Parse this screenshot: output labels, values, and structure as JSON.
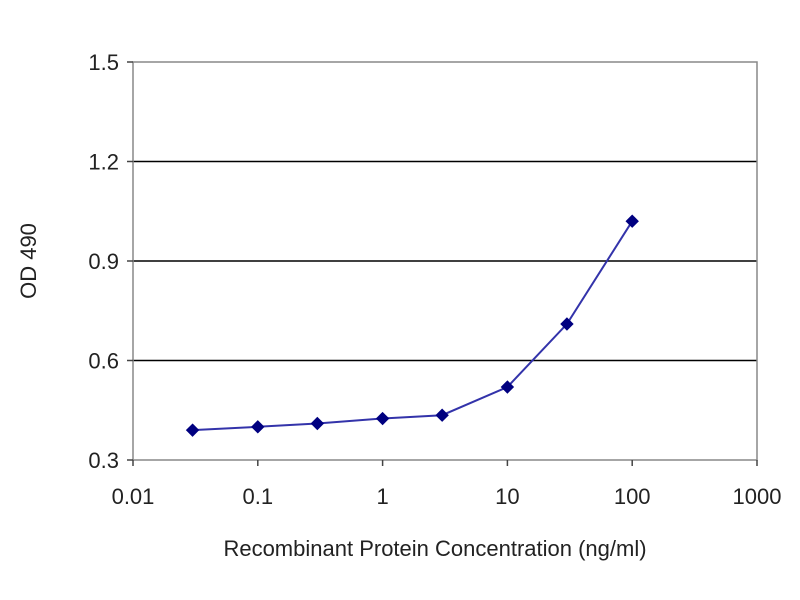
{
  "chart_data": {
    "type": "line",
    "title": "",
    "xlabel": "Recombinant Protein Concentration (ng/ml)",
    "ylabel": "OD 490",
    "x_scale": "log",
    "xlim": [
      0.01,
      1000
    ],
    "ylim": [
      0.3,
      1.5
    ],
    "x_ticks": [
      "0.01",
      "0.1",
      "1",
      "10",
      "100",
      "1000"
    ],
    "y_ticks": [
      "0.3",
      "0.6",
      "0.9",
      "1.2",
      "1.5"
    ],
    "grid": "horizontal",
    "legend": "none",
    "series": [
      {
        "x": [
          0.03,
          0.1,
          0.3,
          1,
          3,
          10,
          30,
          100
        ],
        "y": [
          0.39,
          0.4,
          0.41,
          0.425,
          0.435,
          0.52,
          0.71,
          1.02
        ]
      }
    ],
    "colors": {
      "line": "#3333aa",
      "marker": "#000080",
      "grid": "#000000",
      "frame": "#888888"
    }
  }
}
